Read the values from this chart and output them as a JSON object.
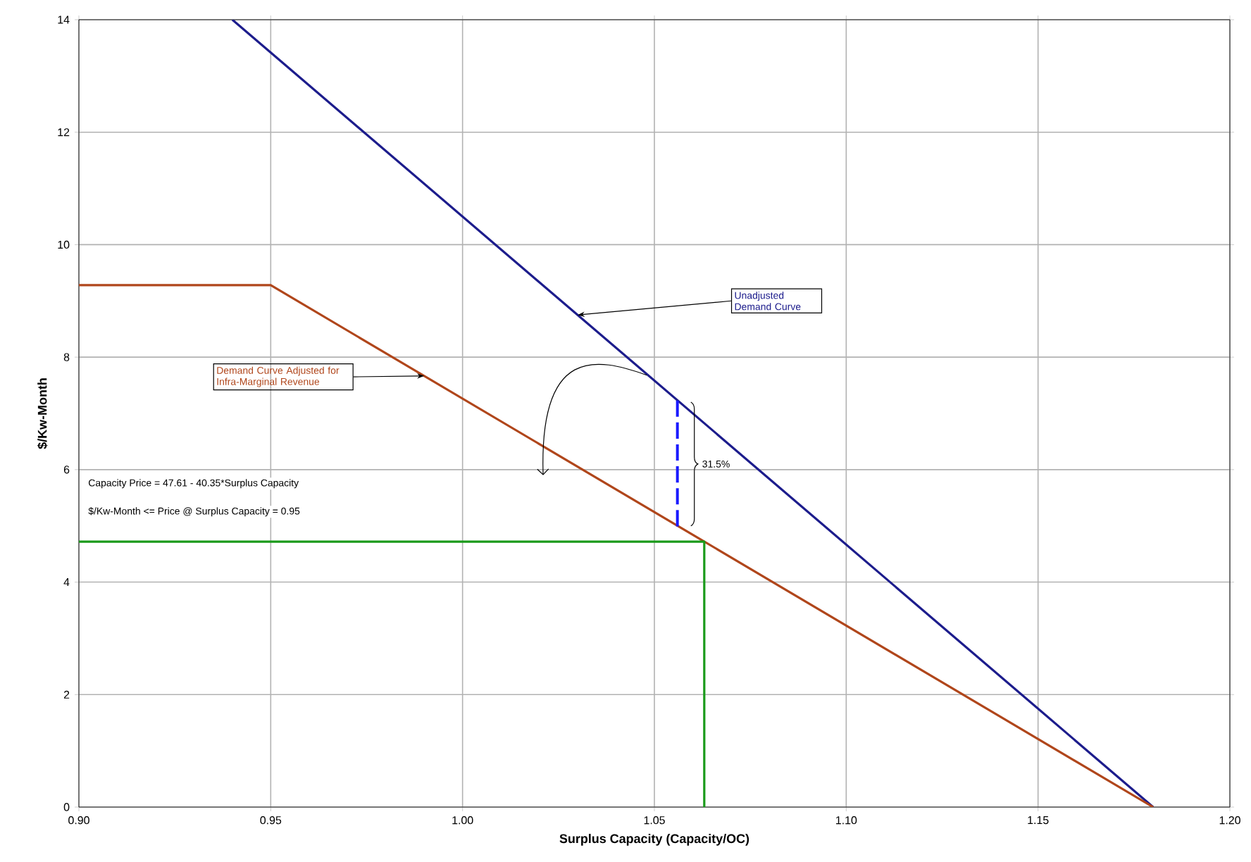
{
  "chart_data": {
    "type": "line",
    "xlabel": "Surplus Capacity (Capacity/OC)",
    "ylabel": "$/Kw-Month",
    "xlim": [
      0.9,
      1.2
    ],
    "ylim": [
      0,
      14
    ],
    "xticks": [
      {
        "value": 0.9,
        "label": "0.90"
      },
      {
        "value": 0.95,
        "label": "0.95"
      },
      {
        "value": 1.0,
        "label": "1.00"
      },
      {
        "value": 1.05,
        "label": "1.05"
      },
      {
        "value": 1.1,
        "label": "1.10"
      },
      {
        "value": 1.15,
        "label": "1.15"
      },
      {
        "value": 1.2,
        "label": "1.20"
      }
    ],
    "yticks": [
      0,
      2,
      4,
      6,
      8,
      10,
      12,
      14
    ],
    "grid": true,
    "series": [
      {
        "name": "Unadjusted Demand Curve",
        "color": "#1c1c8c",
        "x": [
          0.94,
          1.18
        ],
        "values": [
          14,
          0
        ]
      },
      {
        "name": "Demand Curve  Adjusted for Infra-Marginal Revenue",
        "color": "#b0461b",
        "x": [
          0.9,
          0.95,
          1.18
        ],
        "values": [
          9.28,
          9.28,
          0
        ]
      },
      {
        "color": "#1a9a1a",
        "x": [
          0.9,
          1.063,
          1.063
        ],
        "values": [
          4.72,
          4.72,
          0
        ]
      },
      {
        "color": "#1a1aff",
        "line_style": "dashed",
        "x": [
          1.056,
          1.056
        ],
        "values": [
          4.99,
          7.23
        ]
      }
    ],
    "annotations": [
      "Capacity Price = 47.61 - 40.35*Surplus Capacity",
      "$/Kw-Month <= Price @ Surplus Capacity = 0.95",
      {
        "text": "31.5%",
        "x": 1.056,
        "y": 6.1
      }
    ]
  }
}
